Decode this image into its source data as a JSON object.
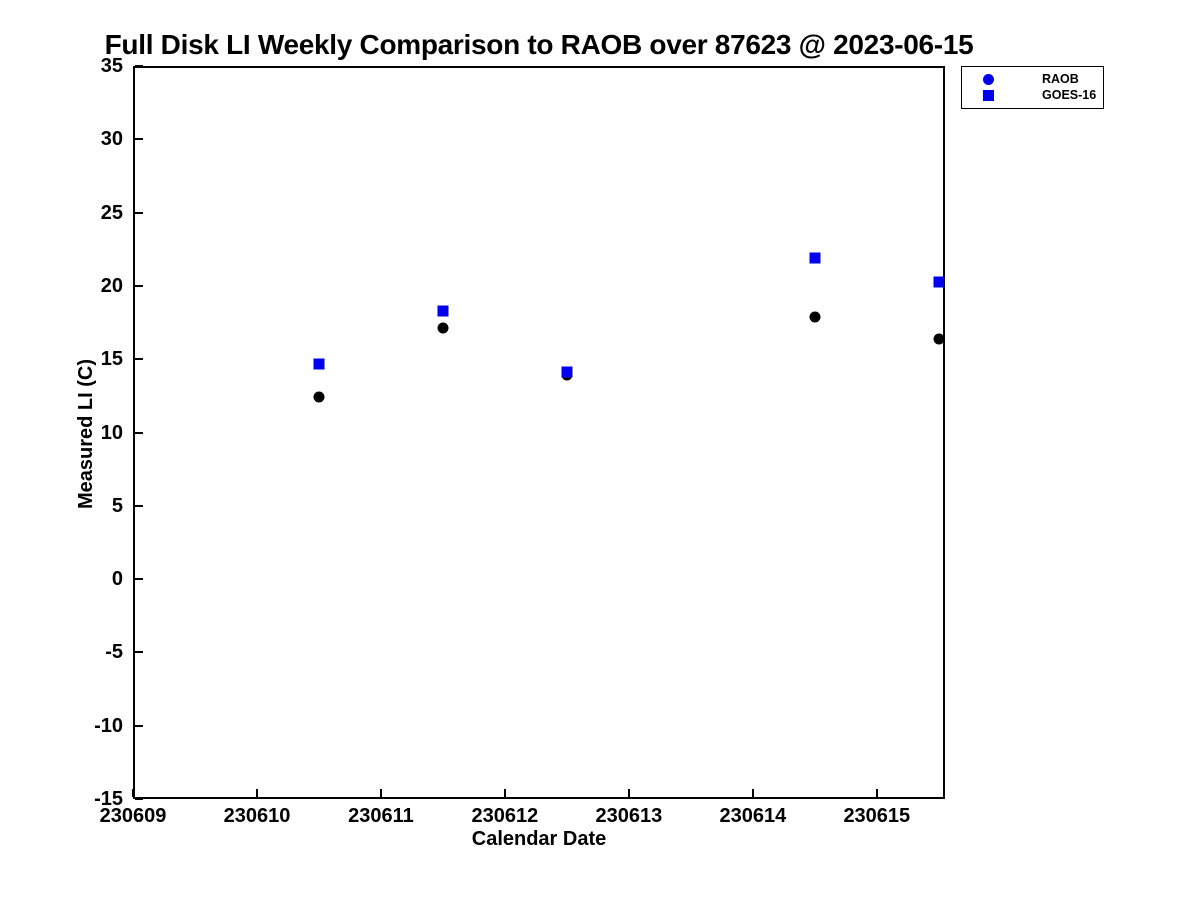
{
  "chart_data": {
    "type": "scatter",
    "title": "Full Disk LI Weekly Comparison to RAOB over 87623 @ 2023-06-15",
    "xlabel": "Calendar Date",
    "ylabel": "Measured LI (C)",
    "xlim": [
      230609,
      230615.55
    ],
    "ylim": [
      -15,
      35
    ],
    "xticks": [
      230609,
      230610,
      230611,
      230612,
      230613,
      230614,
      230615
    ],
    "yticks": [
      35,
      30,
      25,
      20,
      15,
      10,
      5,
      0,
      -5,
      -10,
      -15
    ],
    "grid": false,
    "legend_position": "outside-top-right",
    "x": [
      230610.5,
      230611.5,
      230612.5,
      230614.5,
      230615.5
    ],
    "series": [
      {
        "name": "RAOB",
        "marker": "circle",
        "plot_color": "#000000",
        "legend_color": "#0000EE",
        "values": [
          12.4,
          17.1,
          13.9,
          17.9,
          16.4
        ]
      },
      {
        "name": "GOES-16",
        "marker": "square",
        "plot_color": "#0000EE",
        "legend_color": "#0000EE",
        "values": [
          14.7,
          18.3,
          14.1,
          21.9,
          20.3
        ]
      }
    ]
  }
}
